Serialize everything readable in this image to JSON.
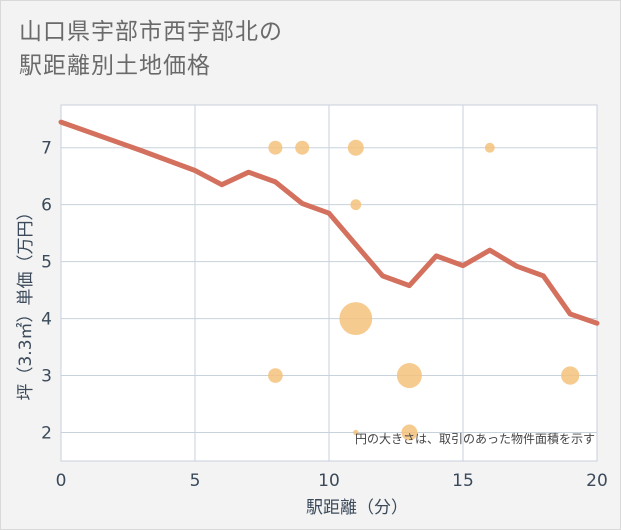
{
  "title_line1": "山口県宇部市西宇部北の",
  "title_line2": "駅距離別土地価格",
  "colors": {
    "line": "#d4705e",
    "bubble": "#f5c27d",
    "grid": "#c8d2dc",
    "plot_bg": "#ffffff"
  },
  "chart_data": {
    "type": "line",
    "xlabel": "駅距離（分）",
    "ylabel": "坪（3.3㎡）単価（万円）",
    "xlim": [
      0,
      20
    ],
    "ylim": [
      1.5,
      7.75
    ],
    "xticks": [
      0,
      5,
      10,
      15,
      20
    ],
    "yticks": [
      2,
      3,
      4,
      5,
      6,
      7
    ],
    "grid": true,
    "line_series": {
      "x": [
        0,
        3,
        5,
        6,
        7,
        8,
        9,
        10,
        11,
        12,
        13,
        14,
        15,
        16,
        17,
        18,
        19,
        20
      ],
      "y": [
        7.45,
        6.95,
        6.6,
        6.35,
        6.57,
        6.4,
        6.02,
        5.85,
        5.3,
        4.75,
        4.58,
        5.1,
        4.93,
        5.2,
        4.92,
        4.75,
        4.08,
        3.92
      ]
    },
    "bubbles": [
      {
        "x": 8,
        "y": 7,
        "size": 1
      },
      {
        "x": 9,
        "y": 7,
        "size": 1
      },
      {
        "x": 11,
        "y": 7,
        "size": 1.3
      },
      {
        "x": 16,
        "y": 7,
        "size": 0.5
      },
      {
        "x": 11,
        "y": 6,
        "size": 0.6
      },
      {
        "x": 11,
        "y": 4,
        "size": 5.5
      },
      {
        "x": 8,
        "y": 3,
        "size": 1.1
      },
      {
        "x": 13,
        "y": 3,
        "size": 3.2
      },
      {
        "x": 19,
        "y": 3,
        "size": 1.7
      },
      {
        "x": 11,
        "y": 2,
        "size": 0.15
      },
      {
        "x": 13,
        "y": 2,
        "size": 1.3
      }
    ],
    "annotation": "円の大きさは、取引のあった物件面積を示す"
  }
}
